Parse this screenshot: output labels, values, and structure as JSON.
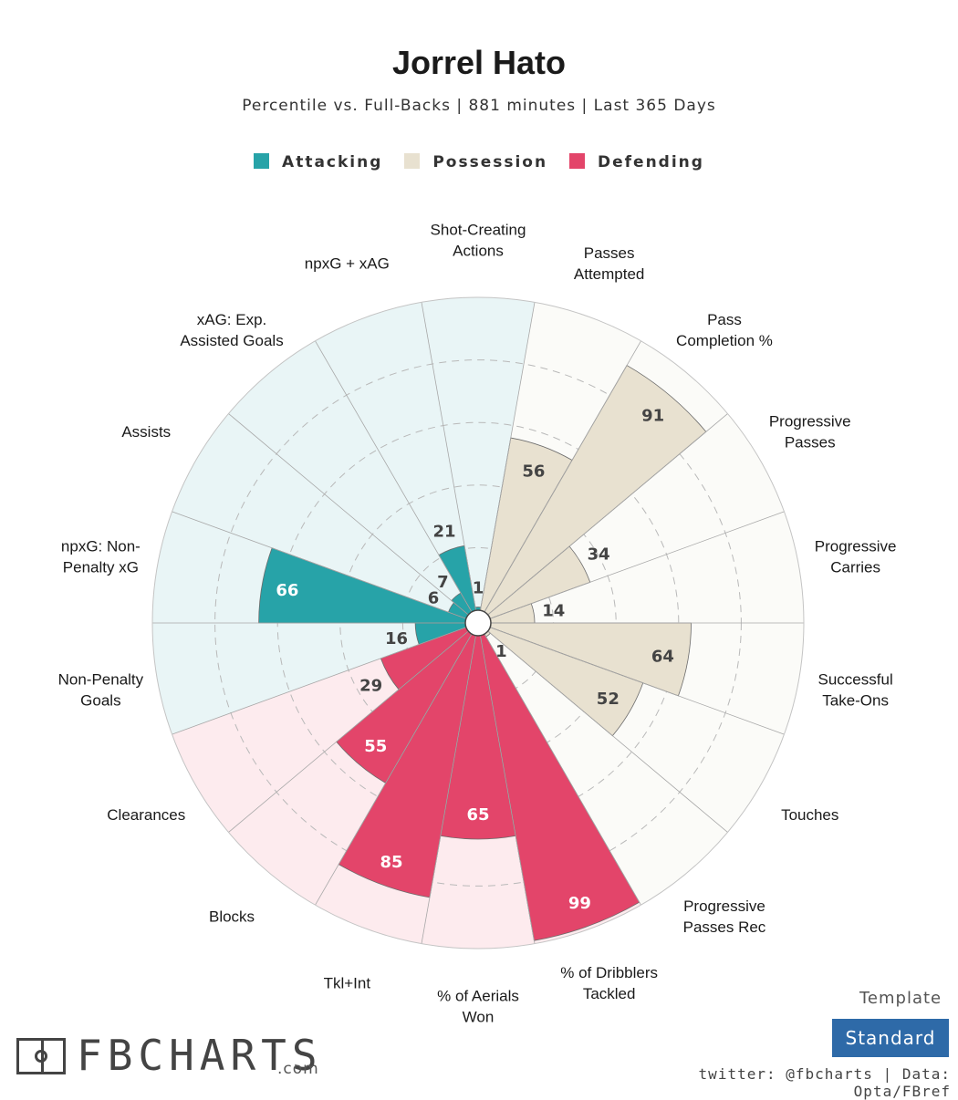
{
  "header": {
    "title": "Jorrel Hato",
    "subtitle": "Percentile vs. Full-Backs | 881 minutes | Last 365 Days"
  },
  "legend": [
    {
      "label": "Attacking",
      "color": "#27a3a8"
    },
    {
      "label": "Possession",
      "color": "#e8e1d0"
    },
    {
      "label": "Defending",
      "color": "#e3456a"
    }
  ],
  "chart_data": {
    "type": "polar-bar",
    "rlim": [
      0,
      100
    ],
    "grid": true,
    "start_angle_deg": 0,
    "direction": "clockwise-from-top",
    "categories": [
      {
        "label": "Shot-Creating\nActions",
        "value": 1,
        "group": "Attacking"
      },
      {
        "label": "Passes\nAttempted",
        "value": 56,
        "group": "Possession"
      },
      {
        "label": "Pass\nCompletion %",
        "value": 91,
        "group": "Possession"
      },
      {
        "label": "Progressive\nPasses",
        "value": 34,
        "group": "Possession"
      },
      {
        "label": "Progressive\nCarries",
        "value": 14,
        "group": "Possession"
      },
      {
        "label": "Successful\nTake-Ons",
        "value": 64,
        "group": "Possession"
      },
      {
        "label": "Touches",
        "value": 52,
        "group": "Possession"
      },
      {
        "label": "Progressive\nPasses Rec",
        "value": 1,
        "group": "Possession"
      },
      {
        "label": "% of Dribblers\nTackled",
        "value": 99,
        "group": "Defending"
      },
      {
        "label": "% of Aerials\nWon",
        "value": 65,
        "group": "Defending"
      },
      {
        "label": "Tkl+Int",
        "value": 85,
        "group": "Defending"
      },
      {
        "label": "Blocks",
        "value": 55,
        "group": "Defending"
      },
      {
        "label": "Clearances",
        "value": 29,
        "group": "Defending"
      },
      {
        "label": "Non-Penalty\nGoals",
        "value": 16,
        "group": "Attacking"
      },
      {
        "label": "npxG: Non-\nPenalty xG",
        "value": 66,
        "group": "Attacking"
      },
      {
        "label": "Assists",
        "value": 6,
        "group": "Attacking"
      },
      {
        "label": "xAG: Exp.\nAssisted Goals",
        "value": 7,
        "group": "Attacking"
      },
      {
        "label": "npxG + xAG",
        "value": 21,
        "group": "Attacking"
      }
    ]
  },
  "colors": {
    "Attacking": {
      "bar": "#27a3a8",
      "bg": "#e9f5f6",
      "text": "#ffffff",
      "lowtext": "#444444"
    },
    "Possession": {
      "bar": "#e8e1d0",
      "bg": "#fbfbf8",
      "text": "#444444",
      "lowtext": "#444444"
    },
    "Defending": {
      "bar": "#e3456a",
      "bg": "#fdebee",
      "text": "#ffffff",
      "lowtext": "#444444"
    }
  },
  "footer": {
    "template_label": "Template",
    "template_value": "Standard",
    "credits": "twitter: @fbcharts | Data: Opta/FBref",
    "logo_text": "FBCHARTS",
    "logo_suffix": ".com"
  }
}
